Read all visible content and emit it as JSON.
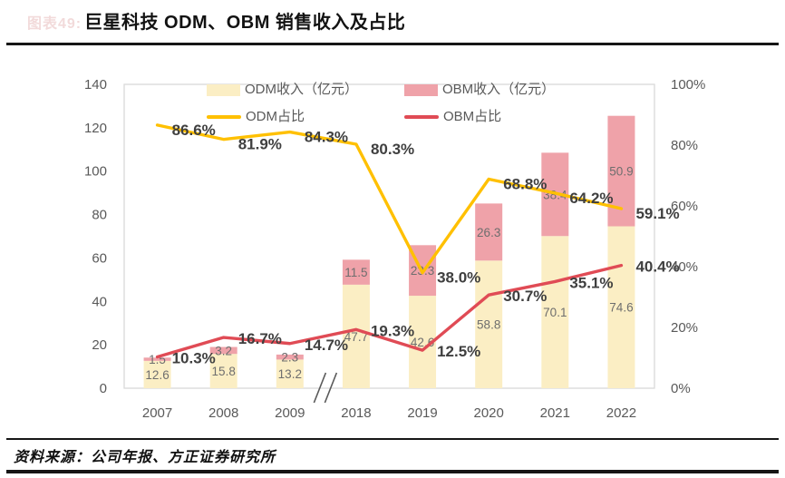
{
  "header": {
    "figure_tag": "图表49:",
    "title": "巨星科技 ODM、OBM 销售收入及占比"
  },
  "footer": {
    "source": "资料来源：公司年报、方正证券研究所"
  },
  "colors": {
    "odm_bar": "#FBEEC4",
    "obm_bar": "#EFA2A9",
    "odm_line": "#FFC000",
    "obm_line": "#E04B55",
    "axis_border": "#D9D9D9",
    "tick_text": "#595959",
    "value_label": "#6E6E6E",
    "pct_label": "#3F3F3F",
    "break_mark": "#595959"
  },
  "chart_data": {
    "type": "bar",
    "subtype": "stacked-bar-with-lines",
    "title": "巨星科技 ODM、OBM 销售收入及占比",
    "categories": [
      "2007",
      "2008",
      "2009",
      "2018",
      "2019",
      "2020",
      "2021",
      "2022"
    ],
    "series": [
      {
        "name": "ODM收入（亿元）",
        "kind": "bar",
        "axis": "left",
        "values": [
          12.6,
          15.8,
          13.2,
          47.7,
          42.6,
          58.8,
          70.1,
          74.6
        ]
      },
      {
        "name": "OBM收入（亿元）",
        "kind": "bar",
        "axis": "left",
        "values": [
          1.5,
          3.2,
          2.3,
          11.5,
          23.3,
          26.3,
          38.4,
          50.9
        ]
      },
      {
        "name": "ODM占比",
        "kind": "line",
        "axis": "right",
        "values": [
          86.6,
          81.9,
          84.3,
          80.3,
          38.0,
          68.8,
          64.2,
          59.1
        ]
      },
      {
        "name": "OBM占比",
        "kind": "line",
        "axis": "right",
        "values": [
          10.3,
          16.7,
          14.7,
          19.3,
          12.5,
          30.7,
          35.1,
          40.4
        ]
      }
    ],
    "left_axis": {
      "min": 0,
      "max": 140,
      "ticks": [
        0,
        20,
        40,
        60,
        80,
        100,
        120,
        140
      ]
    },
    "right_axis": {
      "min": 0,
      "max": 100,
      "tick_labels": [
        "0%",
        "20%",
        "40%",
        "60%",
        "80%",
        "100%"
      ]
    },
    "axis_break_between": [
      "2009",
      "2018"
    ],
    "legend_position": "top",
    "gridlines": false
  }
}
